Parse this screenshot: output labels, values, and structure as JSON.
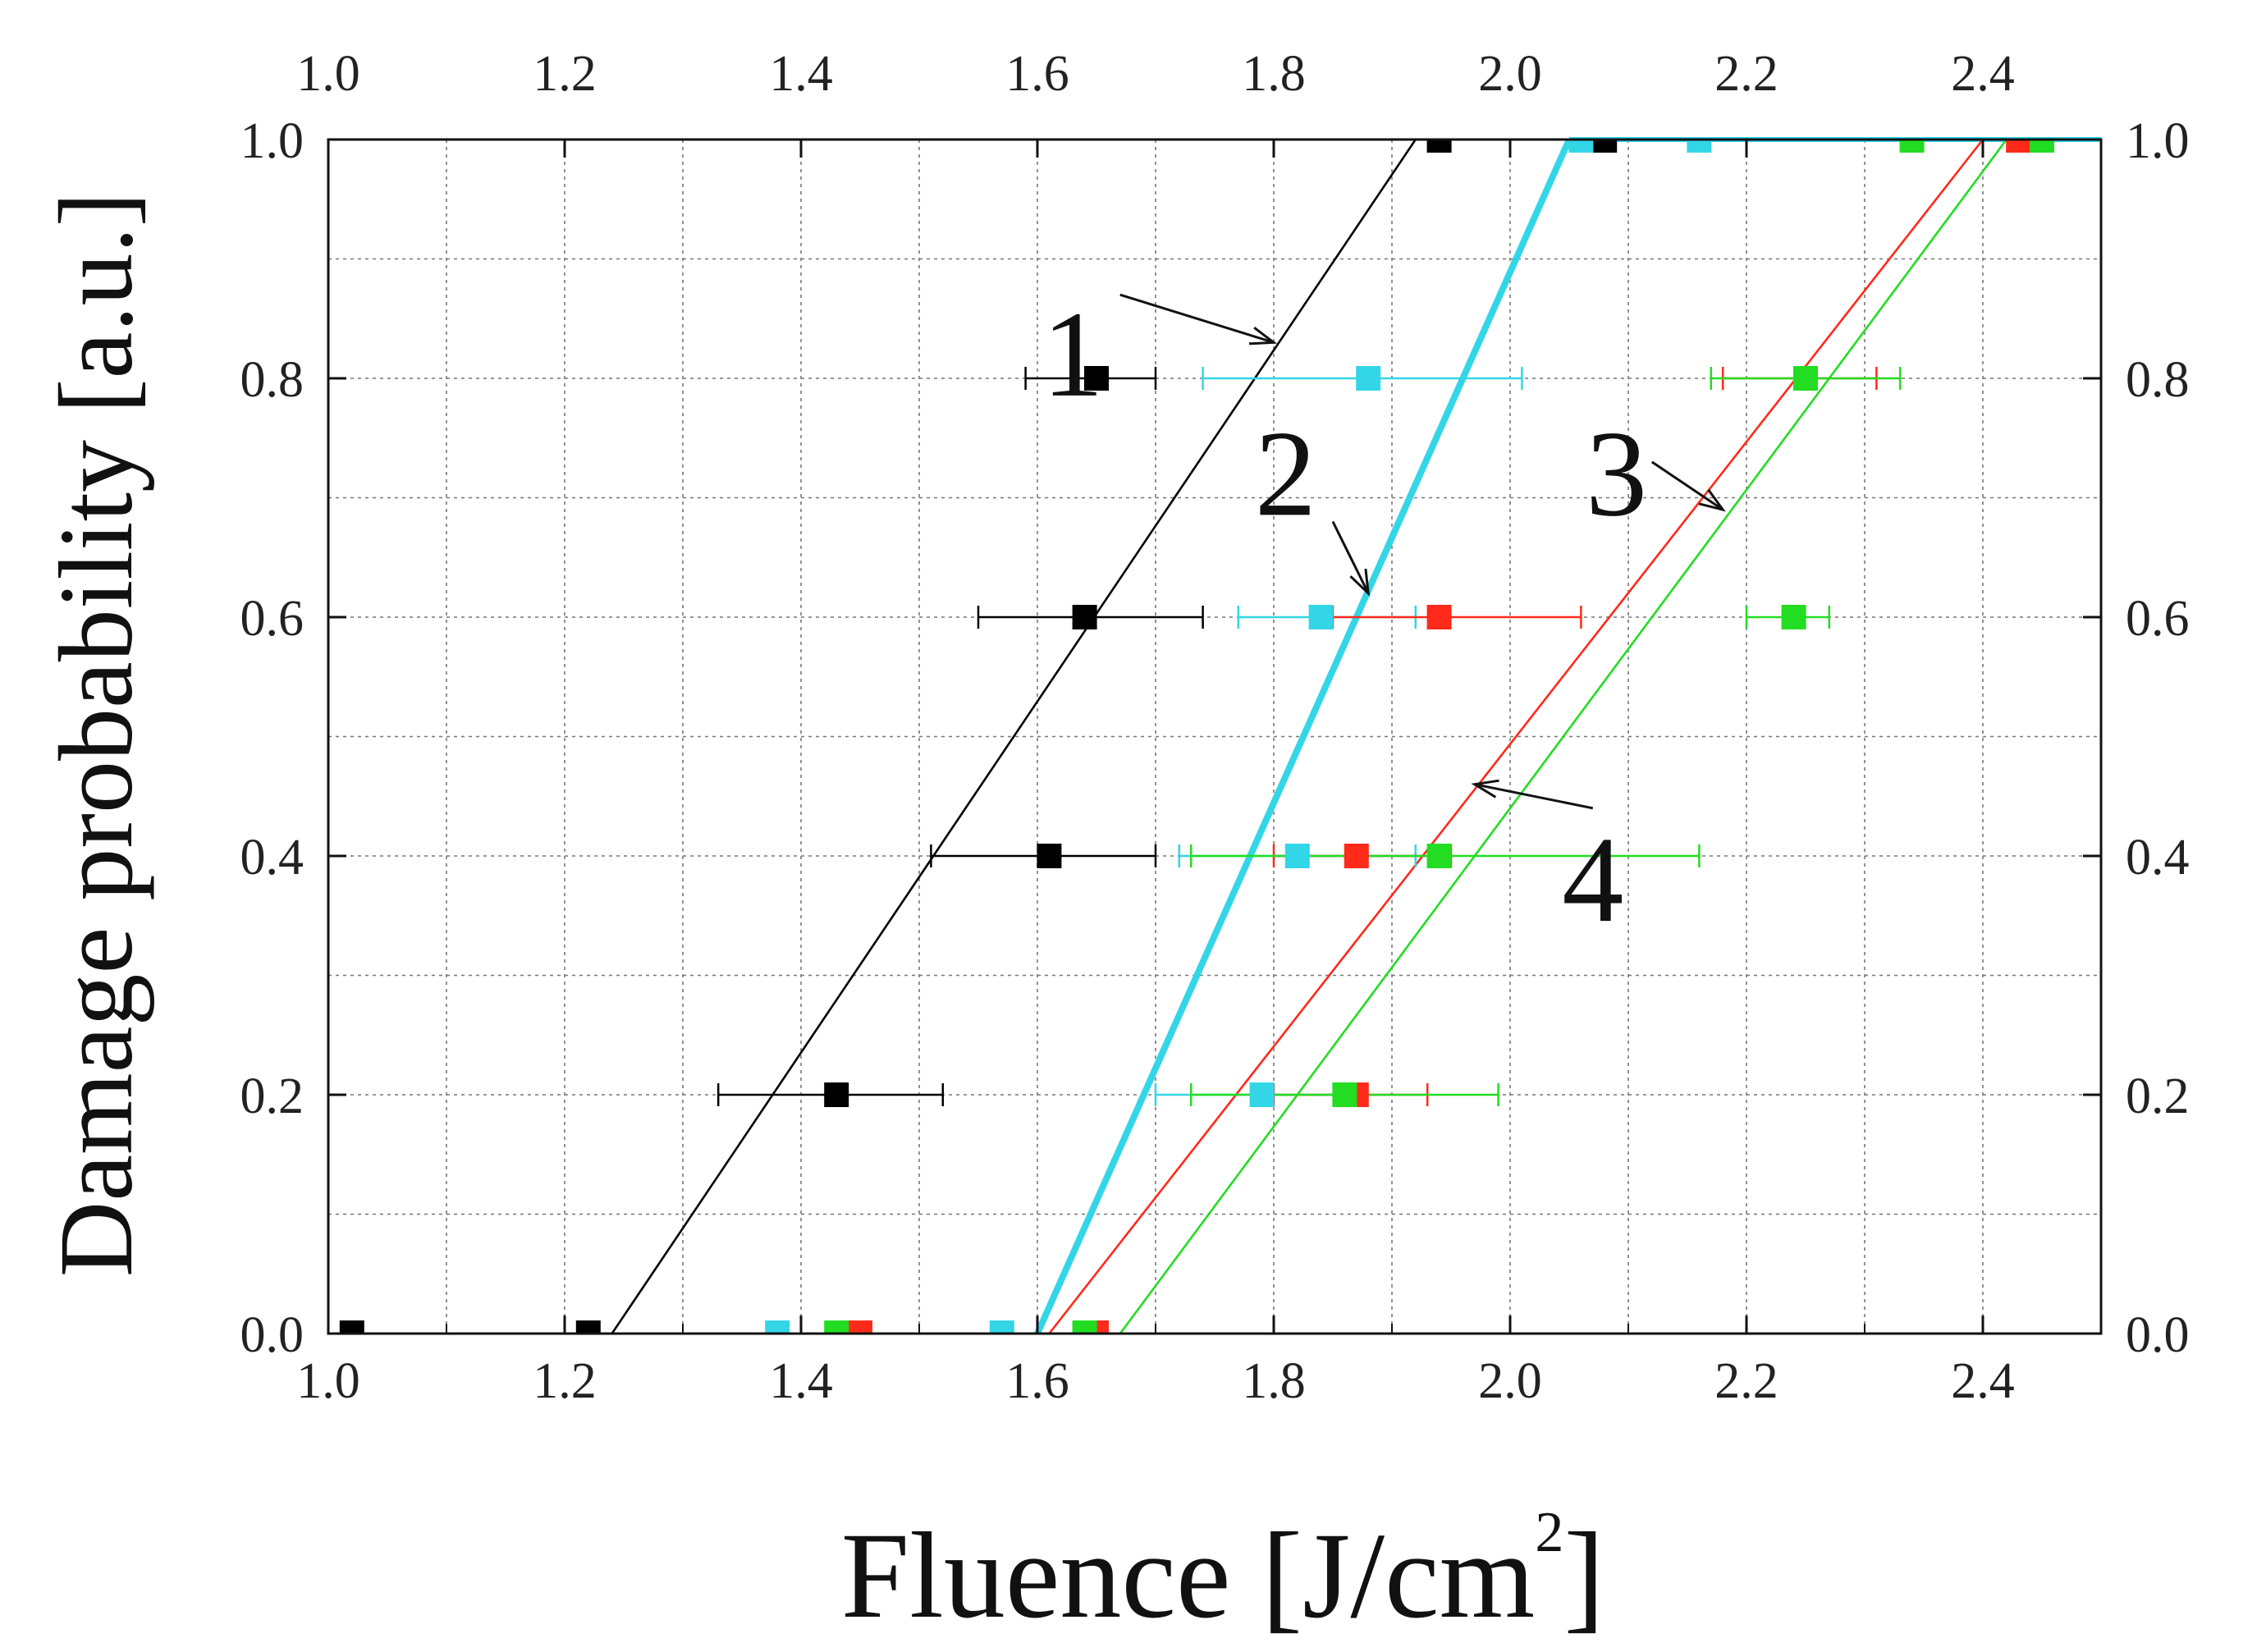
{
  "chart_data": {
    "type": "scatter",
    "title": "",
    "xlabel": "Fluence [J/cm",
    "xlabel_sup": "2",
    "xlabel_close": "]",
    "ylabel": "Damage probability [a.u.]",
    "xlim": [
      1.0,
      2.5
    ],
    "ylim": [
      0.0,
      1.0
    ],
    "xticks": [
      "1.0",
      "1.2",
      "1.4",
      "1.6",
      "1.8",
      "2.0",
      "2.2",
      "2.4"
    ],
    "yticks": [
      "0.0",
      "0.2",
      "0.4",
      "0.6",
      "0.8",
      "1.0"
    ],
    "grid": true,
    "series": [
      {
        "color": "#000000",
        "points": [
          {
            "x": 1.02,
            "y": 0.0
          },
          {
            "x": 1.22,
            "y": 0.0
          },
          {
            "x": 1.43,
            "y": 0.2,
            "xerr": [
              1.33,
              1.52
            ]
          },
          {
            "x": 1.61,
            "y": 0.4,
            "xerr": [
              1.51,
              1.7
            ]
          },
          {
            "x": 1.64,
            "y": 0.6,
            "xerr": [
              1.55,
              1.74
            ]
          },
          {
            "x": 1.65,
            "y": 0.8,
            "xerr": [
              1.59,
              1.7
            ]
          },
          {
            "x": 1.94,
            "y": 1.0
          },
          {
            "x": 2.08,
            "y": 1.0
          }
        ],
        "fit": [
          [
            1.24,
            0.0
          ],
          [
            1.92,
            1.0
          ]
        ]
      },
      {
        "color": "#33d6e6",
        "points": [
          {
            "x": 1.38,
            "y": 0.0
          },
          {
            "x": 1.57,
            "y": 0.0
          },
          {
            "x": 1.79,
            "y": 0.2,
            "xerr": [
              1.7,
              1.87
            ]
          },
          {
            "x": 1.82,
            "y": 0.4,
            "xerr": [
              1.72,
              1.92
            ]
          },
          {
            "x": 1.84,
            "y": 0.6,
            "xerr": [
              1.77,
              1.92
            ]
          },
          {
            "x": 1.88,
            "y": 0.8,
            "xerr": [
              1.74,
              2.01
            ]
          },
          {
            "x": 2.06,
            "y": 1.0
          },
          {
            "x": 2.16,
            "y": 1.0
          }
        ],
        "fit": [
          [
            1.6,
            0.0
          ],
          [
            2.05,
            1.0
          ]
        ]
      },
      {
        "color": "#ff2a1a",
        "points": [
          {
            "x": 1.45,
            "y": 0.0
          },
          {
            "x": 1.65,
            "y": 0.0
          },
          {
            "x": 1.87,
            "y": 0.2,
            "xerr": [
              1.8,
              1.93
            ]
          },
          {
            "x": 1.87,
            "y": 0.4,
            "xerr": [
              1.8,
              1.95
            ]
          },
          {
            "x": 1.94,
            "y": 0.6,
            "xerr": [
              1.85,
              2.06
            ]
          },
          {
            "x": 2.25,
            "y": 0.8,
            "xerr": [
              2.18,
              2.31
            ]
          },
          {
            "x": 2.43,
            "y": 1.0
          }
        ],
        "fit": [
          [
            1.61,
            0.0
          ],
          [
            2.4,
            1.0
          ]
        ]
      },
      {
        "color": "#22dd22",
        "points": [
          {
            "x": 1.43,
            "y": 0.0
          },
          {
            "x": 1.64,
            "y": 0.0
          },
          {
            "x": 1.86,
            "y": 0.2,
            "xerr": [
              1.73,
              1.99
            ]
          },
          {
            "x": 1.94,
            "y": 0.4,
            "xerr": [
              1.73,
              2.16
            ]
          },
          {
            "x": 2.24,
            "y": 0.6,
            "xerr": [
              2.2,
              2.27
            ]
          },
          {
            "x": 2.25,
            "y": 0.8,
            "xerr": [
              2.17,
              2.33
            ]
          },
          {
            "x": 2.34,
            "y": 1.0
          },
          {
            "x": 2.45,
            "y": 1.0
          }
        ],
        "fit": [
          [
            1.67,
            0.0
          ],
          [
            2.42,
            1.0
          ]
        ]
      }
    ],
    "annotations": [
      {
        "text": "1",
        "label_at": [
          1.63,
          0.82
        ],
        "arrow_from": [
          1.67,
          0.87
        ],
        "arrow_to": [
          1.8,
          0.83
        ]
      },
      {
        "text": "2",
        "label_at": [
          1.81,
          0.72
        ],
        "arrow_from": [
          1.85,
          0.68
        ],
        "arrow_to": [
          1.88,
          0.62
        ]
      },
      {
        "text": "3",
        "label_at": [
          2.09,
          0.72
        ],
        "arrow_from": [
          2.12,
          0.73
        ],
        "arrow_to": [
          2.18,
          0.69
        ]
      },
      {
        "text": "4",
        "label_at": [
          2.07,
          0.38
        ],
        "arrow_from": [
          2.07,
          0.44
        ],
        "arrow_to": [
          1.97,
          0.46
        ]
      }
    ]
  }
}
